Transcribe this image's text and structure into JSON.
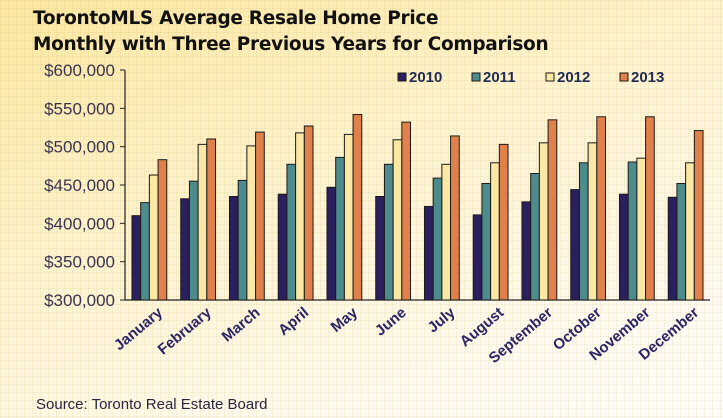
{
  "chart_data": {
    "type": "bar",
    "title": "TorontoMLS Average Resale Home Price",
    "subtitle": "Monthly with Three Previous Years for Comparison",
    "source": "Source: Toronto Real Estate Board",
    "categories": [
      "January",
      "February",
      "March",
      "April",
      "May",
      "June",
      "July",
      "August",
      "September",
      "October",
      "November",
      "December"
    ],
    "series": [
      {
        "name": "2010",
        "color": "#2b1f5e",
        "values": [
          410000,
          432000,
          435000,
          438000,
          447000,
          435000,
          422000,
          411000,
          428000,
          444000,
          438000,
          434000
        ]
      },
      {
        "name": "2011",
        "color": "#4e8b8d",
        "values": [
          427000,
          455000,
          456000,
          477000,
          486000,
          477000,
          459000,
          452000,
          465000,
          479000,
          480000,
          452000
        ]
      },
      {
        "name": "2012",
        "color": "#fbe8a4",
        "values": [
          463000,
          503000,
          501000,
          518000,
          516000,
          509000,
          477000,
          479000,
          505000,
          505000,
          485000,
          479000
        ]
      },
      {
        "name": "2013",
        "color": "#e0804a",
        "values": [
          483000,
          510000,
          519000,
          527000,
          542000,
          532000,
          514000,
          503000,
          535000,
          539000,
          539000,
          521000
        ]
      }
    ],
    "ylim": [
      300000,
      600000
    ],
    "yticks": [
      "$300,000",
      "$350,000",
      "$400,000",
      "$450,000",
      "$500,000",
      "$550,000",
      "$600,000"
    ],
    "legend_position": "top-right",
    "grid": false
  }
}
